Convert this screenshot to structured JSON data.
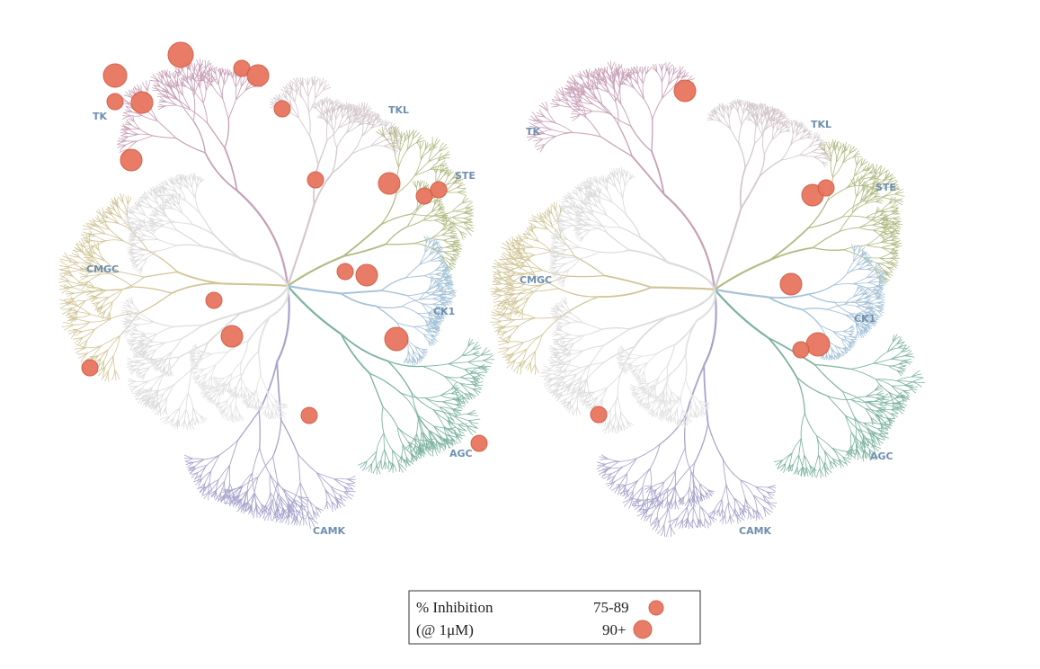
{
  "trees": [
    {
      "labels": [
        "TK",
        "TKL",
        "STE",
        "CK1",
        "AGC",
        "CAMK",
        "CMGC"
      ]
    },
    {
      "labels": [
        "TK",
        "TKL",
        "STE",
        "CK1",
        "AGC",
        "CAMK",
        "CMGC"
      ]
    }
  ],
  "legend": {
    "title_line1": "% Inhibition",
    "title_line2": "(@ 1μM)",
    "levels": [
      "75-89",
      "90+"
    ]
  }
}
